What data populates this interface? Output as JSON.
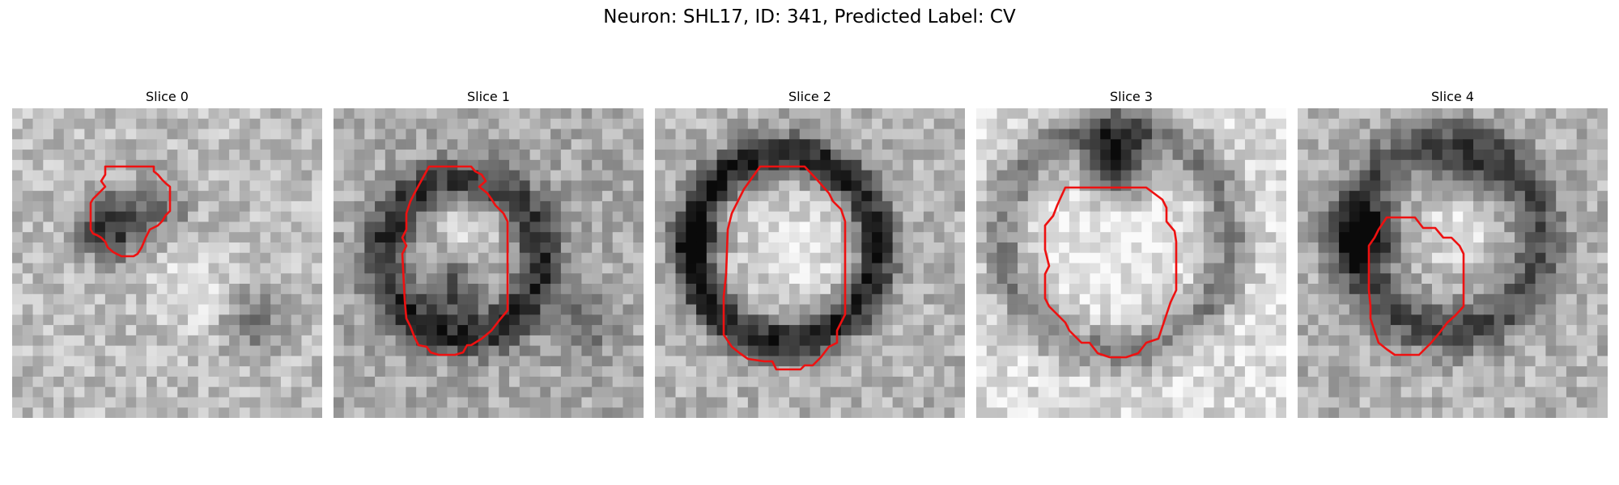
{
  "figure": {
    "suptitle": "Neuron: SHL17, ID: 341, Predicted Label: CV",
    "contour_color": "#ee1111",
    "colormap": "gray"
  },
  "panels": [
    {
      "title": "Slice 0"
    },
    {
      "title": "Slice 1"
    },
    {
      "title": "Slice 2"
    },
    {
      "title": "Slice 3"
    },
    {
      "title": "Slice 4"
    }
  ]
}
